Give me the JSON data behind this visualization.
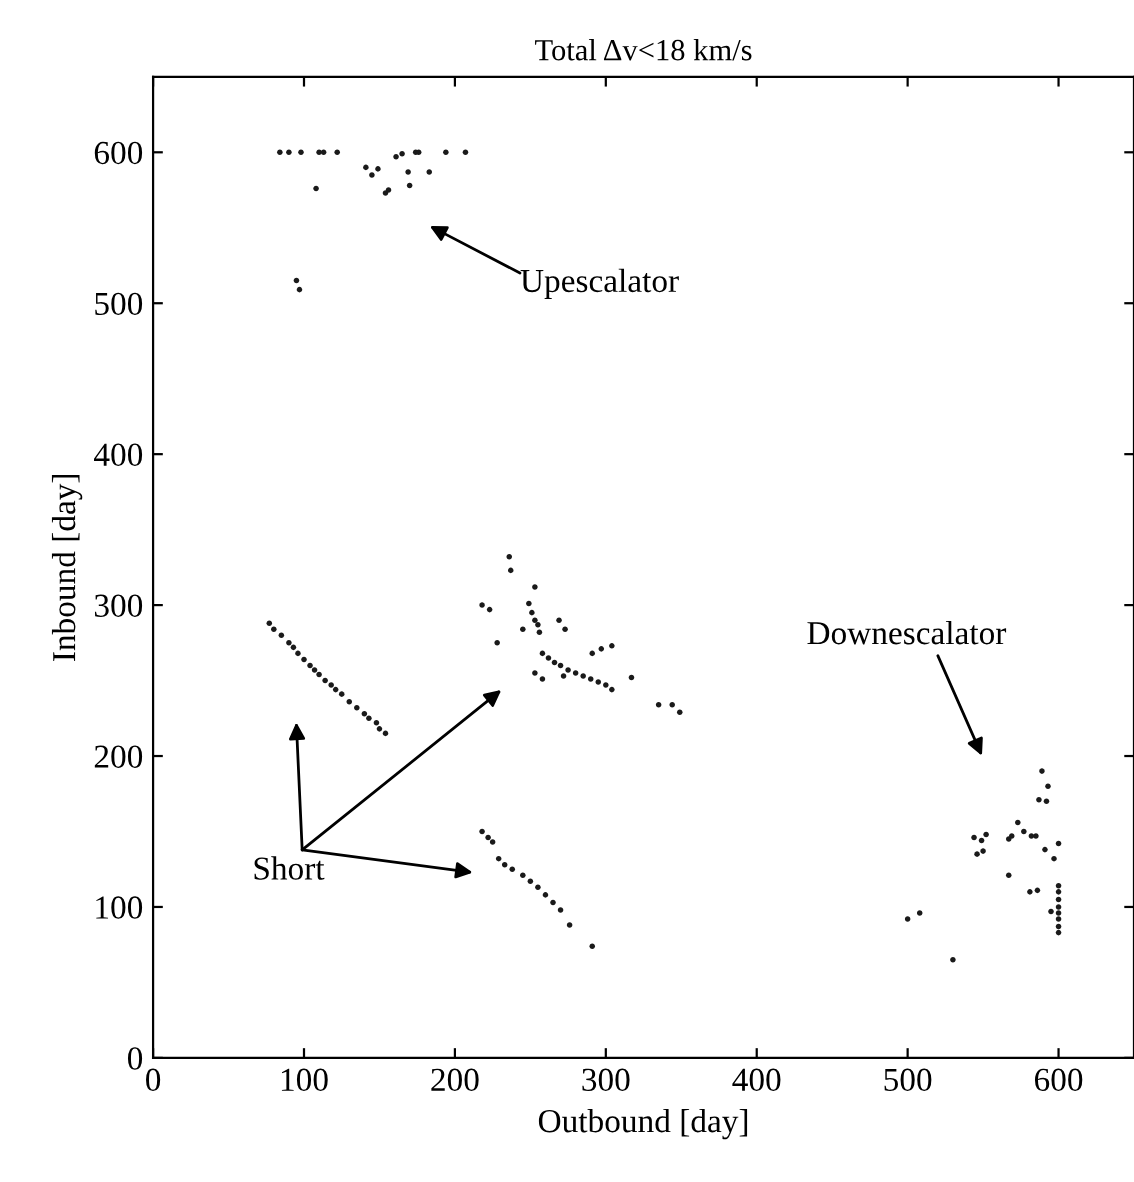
{
  "chart_data": {
    "type": "scatter",
    "title": "Total Δv<18 km/s",
    "xlabel": "Outbound [day]",
    "ylabel": "Inbound [day]",
    "xlim": [
      0,
      650
    ],
    "ylim": [
      0,
      650
    ],
    "xticks": [
      0,
      100,
      200,
      300,
      400,
      500,
      600
    ],
    "yticks": [
      0,
      100,
      200,
      300,
      400,
      500,
      600
    ],
    "grid": false,
    "marker": "circle",
    "annotations": [
      "Upescalator",
      "Downescalator",
      "Short"
    ],
    "series": [
      {
        "color": "#1a1a1a",
        "x": [
          84,
          90,
          98,
          110,
          113,
          122,
          174,
          176,
          194,
          207,
          161,
          165,
          141,
          145,
          149,
          154,
          156,
          169,
          170,
          183,
          108,
          95,
          97,
          77,
          80,
          85,
          90,
          93,
          96,
          100,
          104,
          107,
          110,
          114,
          118,
          121,
          125,
          130,
          135,
          140,
          143,
          148,
          150,
          154,
          236,
          237,
          253,
          218,
          223,
          228,
          249,
          251,
          253,
          255,
          256,
          258,
          262,
          266,
          270,
          275,
          280,
          285,
          290,
          295,
          300,
          304,
          291,
          297,
          304,
          317,
          335,
          344,
          349,
          269,
          273,
          253,
          258,
          272,
          245,
          218,
          222,
          225,
          229,
          233,
          238,
          245,
          250,
          255,
          260,
          265,
          270,
          276,
          291,
          589,
          593,
          587,
          592,
          573,
          577,
          569,
          567,
          582,
          585,
          544,
          549,
          552,
          550,
          546,
          591,
          600,
          597,
          567,
          581,
          586,
          600,
          600,
          600,
          600,
          600,
          600,
          600,
          600,
          595,
          500,
          508,
          530
        ],
        "values": [
          600,
          600,
          600,
          600,
          600,
          600,
          600,
          600,
          600,
          600,
          597,
          599,
          590,
          585,
          589,
          573,
          575,
          587,
          578,
          587,
          576,
          515,
          509,
          288,
          284,
          280,
          275,
          272,
          268,
          264,
          260,
          257,
          254,
          250,
          247,
          244,
          241,
          236,
          232,
          228,
          225,
          222,
          218,
          215,
          332,
          323,
          312,
          300,
          297,
          275,
          301,
          295,
          290,
          287,
          282,
          268,
          265,
          262,
          260,
          257,
          255,
          253,
          251,
          249,
          247,
          244,
          268,
          271,
          273,
          252,
          234,
          234,
          229,
          290,
          284,
          255,
          251,
          253,
          284,
          150,
          146,
          143,
          132,
          128,
          125,
          121,
          117,
          113,
          108,
          103,
          98,
          88,
          74,
          190,
          180,
          171,
          170,
          156,
          150,
          147,
          145,
          147,
          147,
          146,
          144,
          148,
          137,
          135,
          138,
          142,
          132,
          121,
          110,
          111,
          114,
          110,
          105,
          100,
          96,
          92,
          87,
          83,
          97,
          92,
          96,
          65
        ]
      }
    ]
  }
}
